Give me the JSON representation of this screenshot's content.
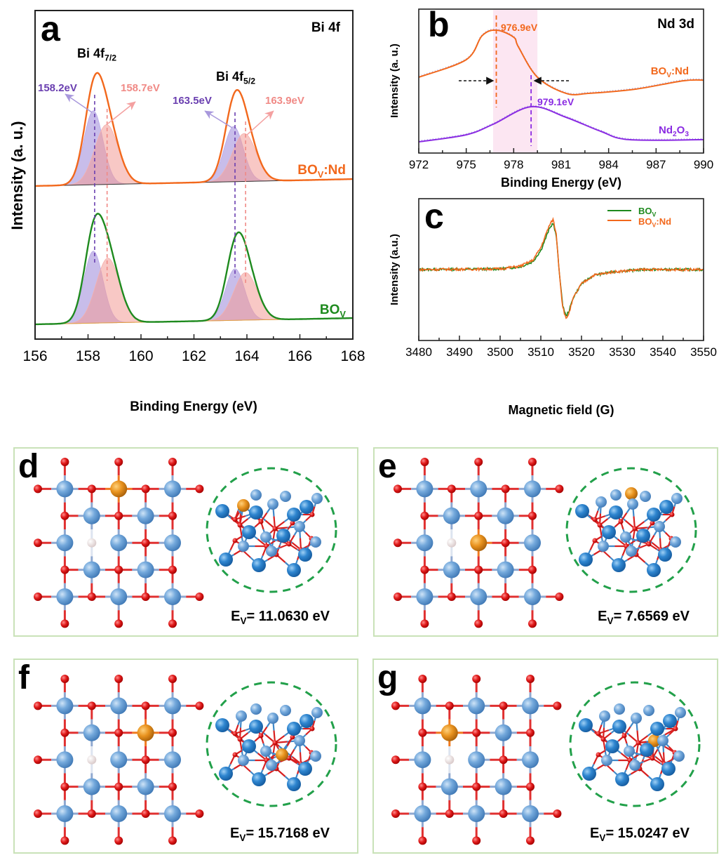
{
  "colors": {
    "bov_nd": "#f2681c",
    "bov": "#1e8a1e",
    "purple_label": "#6a3fb0",
    "pink_label": "#f08a86",
    "purple_fill": "#9a86d8",
    "pink_fill": "#f29a96",
    "nd2o3": "#8a2be2",
    "band": "#fce6f2",
    "panel_border": "#c9e2b8",
    "circle": "#22a04a",
    "bi_atom": "#6fa6dc",
    "o_atom": "#e01a1a",
    "nd_atom": "#e8921e",
    "vacancy": "#eadcdc"
  },
  "chart_data": [
    {
      "panel": "a",
      "type": "line",
      "title": "Bi 4f",
      "xlabel": "Binding Energy (eV)",
      "ylabel": "Intensity (a. u.)",
      "xlim": [
        156,
        168
      ],
      "xticks": [
        "156",
        "158",
        "160",
        "162",
        "164",
        "166",
        "168"
      ],
      "ylim": [
        0,
        100
      ],
      "grid": false,
      "peak_labels": [
        {
          "parts": [
            "Bi 4f",
            "7/2"
          ]
        },
        {
          "parts": [
            "Bi 4f",
            "5/2"
          ]
        }
      ],
      "annotations": [
        {
          "text": "158.2eV",
          "x": 158.2,
          "color": "purple"
        },
        {
          "text": "158.7eV",
          "x": 158.7,
          "color": "pink"
        },
        {
          "text": "163.5eV",
          "x": 163.5,
          "color": "purple"
        },
        {
          "text": "163.9eV",
          "x": 163.9,
          "color": "pink"
        }
      ],
      "series": [
        {
          "name": "BOV:Nd",
          "label_parts": [
            "BO",
            "V",
            ":Nd"
          ],
          "baseline": [
            46.6,
            48.7
          ],
          "components": [
            {
              "center": 158.2,
              "height": 22.5,
              "fwhm": 0.85,
              "kind": "purple"
            },
            {
              "center": 158.7,
              "height": 18.2,
              "fwhm": 1.05,
              "kind": "pink"
            },
            {
              "center": 163.5,
              "height": 16.8,
              "fwhm": 0.85,
              "kind": "purple"
            },
            {
              "center": 163.9,
              "height": 14.6,
              "fwhm": 1.05,
              "kind": "pink"
            }
          ]
        },
        {
          "name": "BOV",
          "label_parts": [
            "BO",
            "V"
          ],
          "baseline": [
            4.5,
            6.4
          ],
          "components": [
            {
              "center": 158.2,
              "height": 21.9,
              "fwhm": 0.85,
              "kind": "purple"
            },
            {
              "center": 158.75,
              "height": 19.7,
              "fwhm": 1.05,
              "kind": "pink"
            },
            {
              "center": 163.55,
              "height": 15.7,
              "fwhm": 0.85,
              "kind": "purple"
            },
            {
              "center": 163.95,
              "height": 14.5,
              "fwhm": 1.05,
              "kind": "pink"
            }
          ]
        }
      ]
    },
    {
      "panel": "b",
      "type": "line",
      "title": "Nd 3d",
      "xlabel": "Binding Energy (eV)",
      "ylabel": "Intensity (a. u.)",
      "xlim": [
        972,
        990
      ],
      "xticks": [
        "972",
        "975",
        "978",
        "981",
        "984",
        "987",
        "990"
      ],
      "ylim": [
        0,
        100
      ],
      "grid": false,
      "shaded_band": [
        976.7,
        979.5
      ],
      "annotations": [
        {
          "text": "976.9eV",
          "x": 976.9,
          "series": "BOV:Nd"
        },
        {
          "text": "979.1eV",
          "x": 979.1,
          "series": "Nd2O3"
        }
      ],
      "series": [
        {
          "name": "BOV:Nd",
          "label_parts": [
            "BO",
            "V",
            ":Nd"
          ],
          "x": [
            972,
            975,
            976,
            976.9,
            978,
            978.3,
            979.5,
            981.3,
            982.8,
            985.7,
            988.7,
            990
          ],
          "y": [
            52.7,
            64.9,
            81.5,
            85.4,
            80.5,
            73.7,
            52.7,
            41.5,
            41.5,
            44.4,
            50.2,
            50.7
          ]
        },
        {
          "name": "Nd2O3",
          "label_parts": [
            "Nd",
            "2",
            "O",
            "3"
          ],
          "x": [
            972,
            975,
            976.7,
            979.1,
            981.3,
            983.5,
            985.3,
            990
          ],
          "y": [
            7.8,
            12.7,
            20.0,
            32.2,
            24.9,
            15.1,
            9.3,
            9.3
          ]
        }
      ]
    },
    {
      "panel": "c",
      "type": "line",
      "xlabel": "Magnetic field (G)",
      "ylabel": "Intensity (a.u.)",
      "xlim": [
        3480,
        3550
      ],
      "xticks": [
        "3480",
        "3490",
        "3500",
        "3510",
        "3520",
        "3530",
        "3540",
        "3550"
      ],
      "ylim": [
        -1,
        1
      ],
      "grid": false,
      "legend_position": "top-right",
      "series": [
        {
          "name": "BOV",
          "label_parts": [
            "BO",
            "V"
          ],
          "x": [
            3480,
            3500,
            3505,
            3508,
            3510,
            3512,
            3513,
            3513.8,
            3514.5,
            3515.3,
            3516.2,
            3517,
            3518,
            3520,
            3523,
            3528,
            3535,
            3550
          ],
          "y": [
            0,
            0.01,
            0.04,
            0.11,
            0.27,
            0.56,
            0.66,
            0.47,
            0,
            -0.48,
            -0.66,
            -0.57,
            -0.39,
            -0.2,
            -0.08,
            -0.03,
            0,
            0
          ]
        },
        {
          "name": "BOV:Nd",
          "label_parts": [
            "BO",
            "V",
            ":Nd"
          ],
          "x": [
            3480,
            3500,
            3505,
            3508,
            3510,
            3512,
            3513,
            3513.8,
            3514.5,
            3515.3,
            3516.2,
            3517,
            3518,
            3520,
            3523,
            3528,
            3535,
            3550
          ],
          "y": [
            0,
            0.01,
            0.05,
            0.13,
            0.31,
            0.61,
            0.71,
            0.5,
            0,
            -0.5,
            -0.7,
            -0.6,
            -0.4,
            -0.2,
            -0.08,
            -0.03,
            0,
            0
          ]
        }
      ]
    }
  ],
  "structures": [
    {
      "panel": "d",
      "energy_parts": [
        "E",
        "V",
        "= 11.0630 eV"
      ]
    },
    {
      "panel": "e",
      "energy_parts": [
        "E",
        "V",
        "= 7.6569 eV"
      ]
    },
    {
      "panel": "f",
      "energy_parts": [
        "E",
        "V",
        "= 15.7168 eV"
      ]
    },
    {
      "panel": "g",
      "energy_parts": [
        "E",
        "V",
        "= 15.0247 eV"
      ]
    }
  ]
}
